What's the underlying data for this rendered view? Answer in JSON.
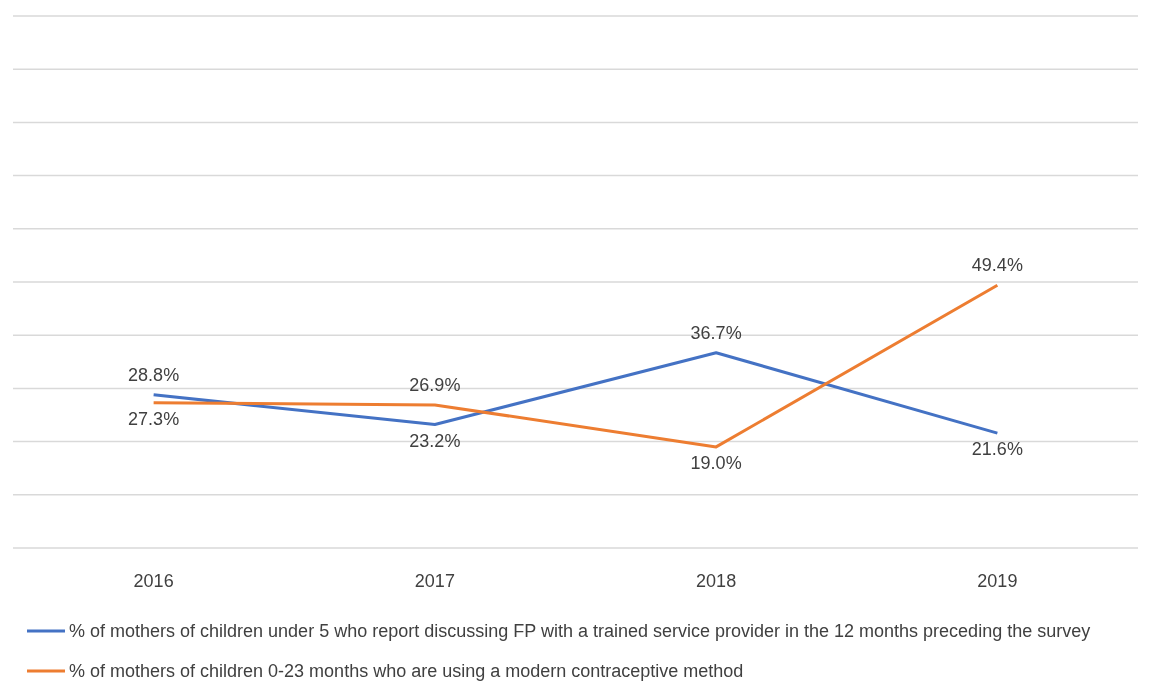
{
  "chart_data": {
    "type": "line",
    "categories": [
      "2016",
      "2017",
      "2018",
      "2019"
    ],
    "series": [
      {
        "name": "% of mothers of children under 5 who report discussing FP with a trained service provider in the 12 months preceding the survey",
        "color": "#4472c4",
        "values": [
          28.8,
          23.2,
          36.7,
          21.6
        ],
        "value_labels": [
          "28.8%",
          "23.2%",
          "36.7%",
          "21.6%"
        ]
      },
      {
        "name": "% of mothers of children 0-23 months who are using a modern contraceptive method",
        "color": "#ed7d31",
        "values": [
          27.3,
          26.9,
          19.0,
          49.4
        ],
        "value_labels": [
          "27.3%",
          "26.9%",
          "19.0%",
          "49.4%"
        ]
      }
    ],
    "ylim": [
      0,
      100
    ],
    "yticks": [
      {
        "value": 0,
        "label": null
      },
      {
        "value": 10,
        "label": null
      },
      {
        "value": 20,
        "label": null
      },
      {
        "value": 30,
        "label": null
      },
      {
        "value": 40,
        "label": null
      },
      {
        "value": 50,
        "label": null
      },
      {
        "value": 60,
        "label": null
      },
      {
        "value": 70,
        "label": null
      },
      {
        "value": 80,
        "label": null
      },
      {
        "value": 90,
        "label": null
      },
      {
        "value": 100,
        "label": null
      }
    ],
    "tick_labels": "x",
    "grid": "y",
    "legend": "bottom",
    "marker": "none",
    "line_style": "solid"
  }
}
